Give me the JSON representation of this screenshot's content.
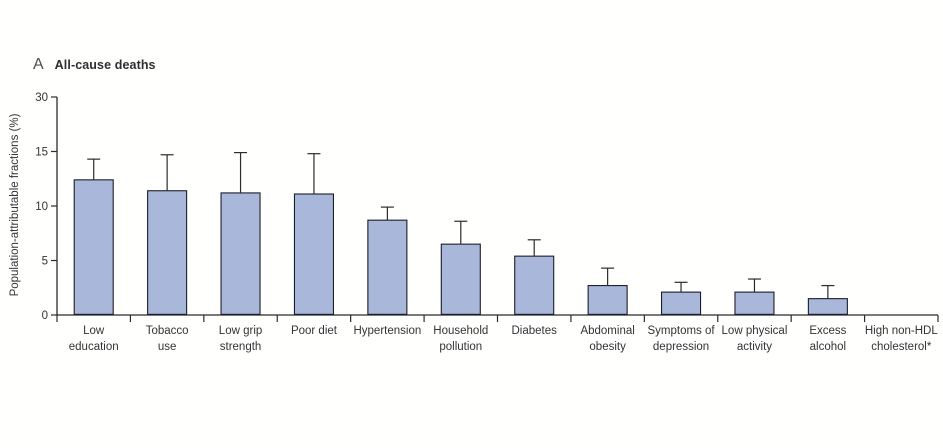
{
  "panel": {
    "letter": "A",
    "title": "All-cause deaths"
  },
  "chart_data": {
    "type": "bar",
    "panel_letter": "A",
    "title": "All-cause deaths",
    "ylabel": "Population-attributable fractions (%)",
    "xlabel": "",
    "categories": [
      "Low education",
      "Tobacco use",
      "Low grip strength",
      "Poor diet",
      "Hypertension",
      "Household pollution",
      "Diabetes",
      "Abdominal obesity",
      "Symptoms of depression",
      "Low physical activity",
      "Excess alcohol",
      "High non-HDL cholesterol*"
    ],
    "category_label_lines": [
      [
        "Low",
        "education"
      ],
      [
        "Tobacco",
        "use"
      ],
      [
        "Low grip",
        "strength"
      ],
      [
        "Poor diet"
      ],
      [
        "Hypertension"
      ],
      [
        "Household",
        "pollution"
      ],
      [
        "Diabetes"
      ],
      [
        "Abdominal",
        "obesity"
      ],
      [
        "Symptoms of",
        "depression"
      ],
      [
        "Low physical",
        "activity"
      ],
      [
        "Excess",
        "alcohol"
      ],
      [
        "High non-HDL",
        "cholesterol*"
      ]
    ],
    "values": [
      12.4,
      11.4,
      11.2,
      11.1,
      8.7,
      6.5,
      5.4,
      2.7,
      2.1,
      2.1,
      1.5,
      0
    ],
    "upper_ci": [
      14.3,
      14.7,
      14.9,
      14.8,
      9.9,
      8.6,
      6.9,
      4.3,
      3.0,
      3.3,
      2.7,
      0
    ],
    "error_bars": "upper 95% CI whisker with cap",
    "yticks": [
      0,
      5,
      10,
      15,
      30
    ],
    "ylim": [
      0,
      30
    ],
    "axis_break_note": "y-axis compressed above 15: the 15-30 range occupies a single tick step",
    "grid": false,
    "legend_position": "none",
    "colors": {
      "bar_fill": "#a8b7da",
      "bar_stroke": "#1d1d29",
      "axis": "#2b2b2e",
      "text": "#333338"
    }
  }
}
